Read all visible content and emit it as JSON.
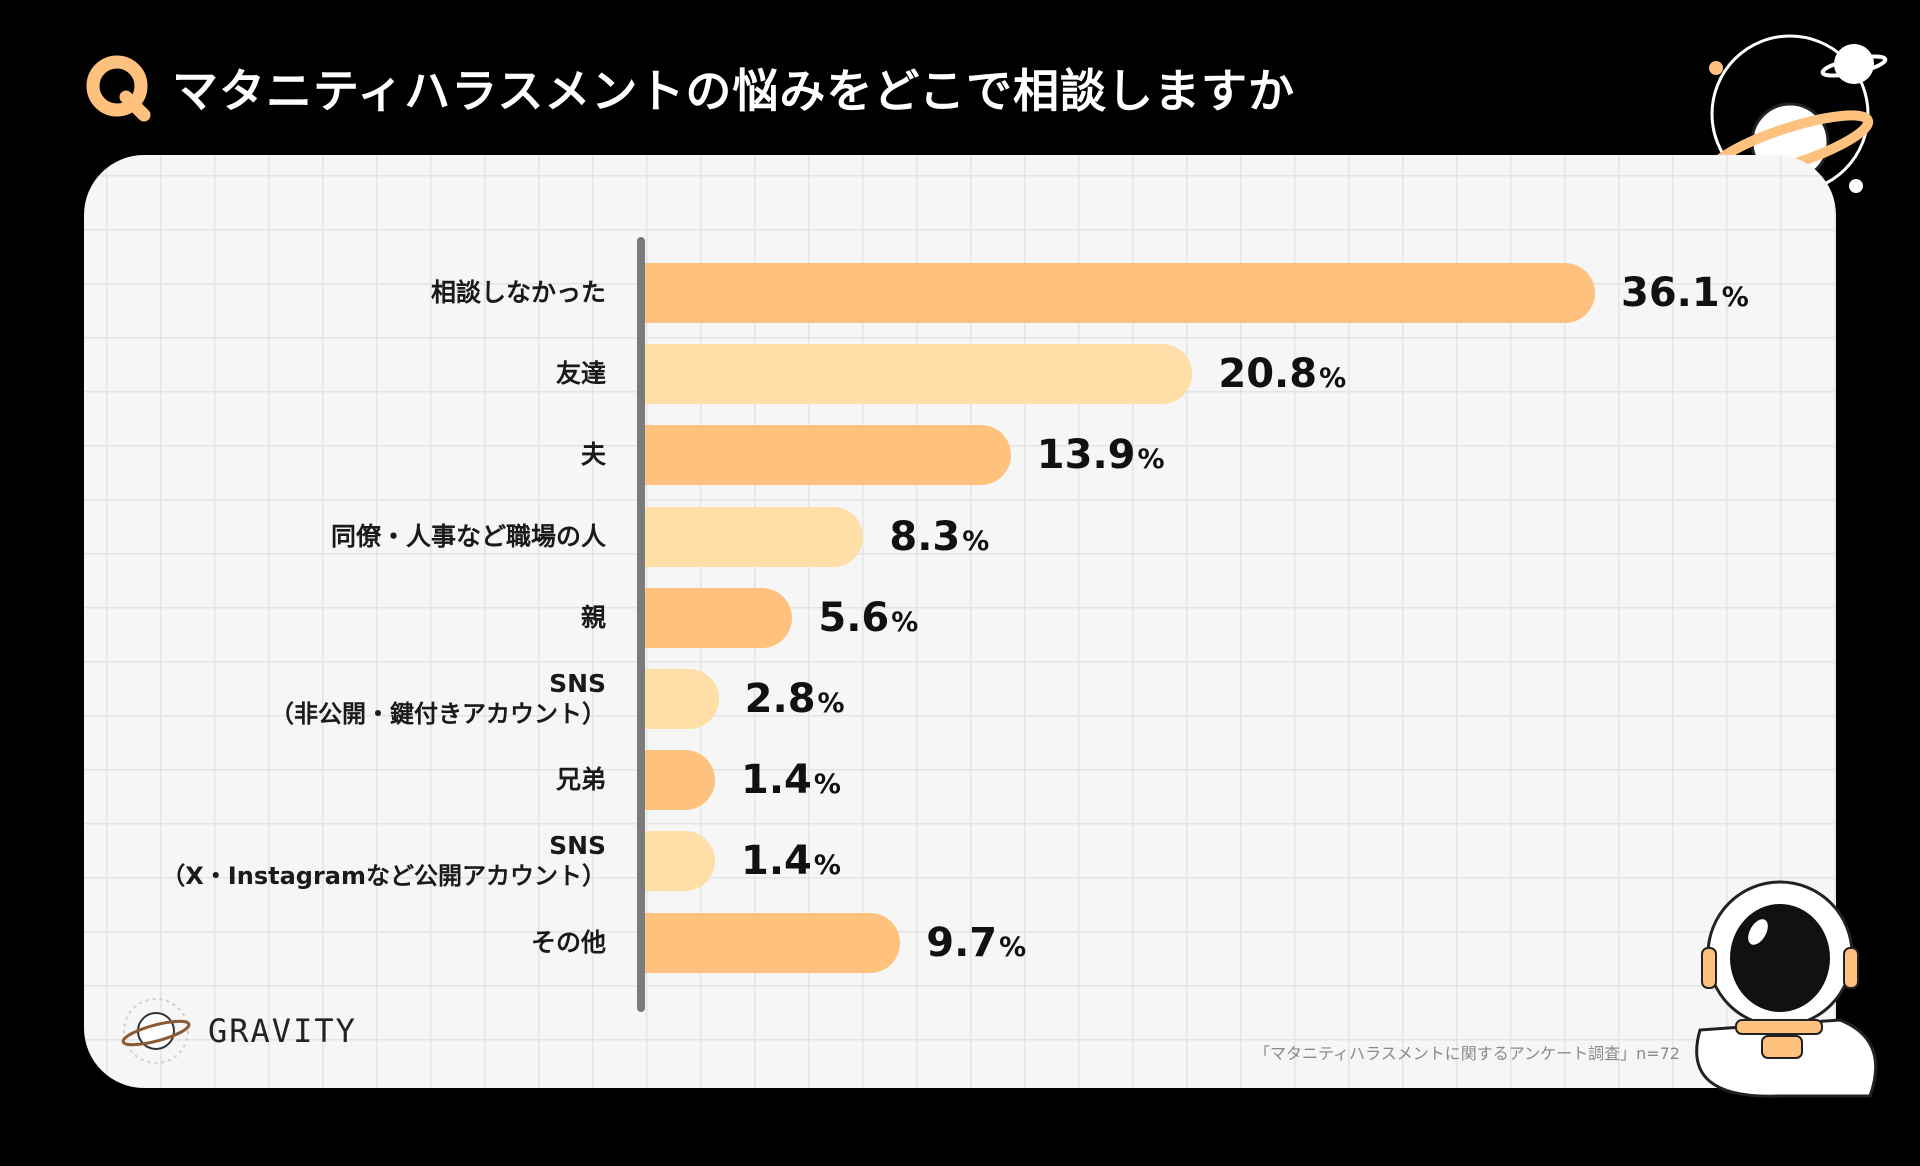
{
  "header": {
    "badge": "Q",
    "title": "マタニティハラスメントの悩みをどこで相談しますか"
  },
  "colors": {
    "bar_dark": "#ffc27e",
    "bar_light": "#ffdea7",
    "accent": "#ffc27e"
  },
  "chart_data": {
    "type": "bar",
    "orientation": "horizontal",
    "title": "マタニティハラスメントの悩みをどこで相談しますか",
    "unit": "%",
    "xlim": [
      0,
      36.1
    ],
    "categories": [
      {
        "label": "相談しなかった",
        "sub": ""
      },
      {
        "label": "友達",
        "sub": ""
      },
      {
        "label": "夫",
        "sub": ""
      },
      {
        "label": "同僚・人事など職場の人",
        "sub": ""
      },
      {
        "label": "親",
        "sub": ""
      },
      {
        "label": "SNS",
        "sub": "（非公開・鍵付きアカウント）"
      },
      {
        "label": "兄弟",
        "sub": ""
      },
      {
        "label": "SNS",
        "sub": "（X・Instagramなど公開アカウント）"
      },
      {
        "label": "その他",
        "sub": ""
      }
    ],
    "values": [
      36.1,
      20.8,
      13.9,
      8.3,
      5.6,
      2.8,
      1.4,
      1.4,
      9.7
    ],
    "value_labels": [
      "36.1",
      "20.8",
      "13.9",
      "8.3",
      "5.6",
      "2.8",
      "1.4",
      "1.4",
      "9.7"
    ]
  },
  "brand": {
    "name": "GRAVITY"
  },
  "source": {
    "text": "「マタニティハラスメントに関するアンケート調査」n=72"
  }
}
